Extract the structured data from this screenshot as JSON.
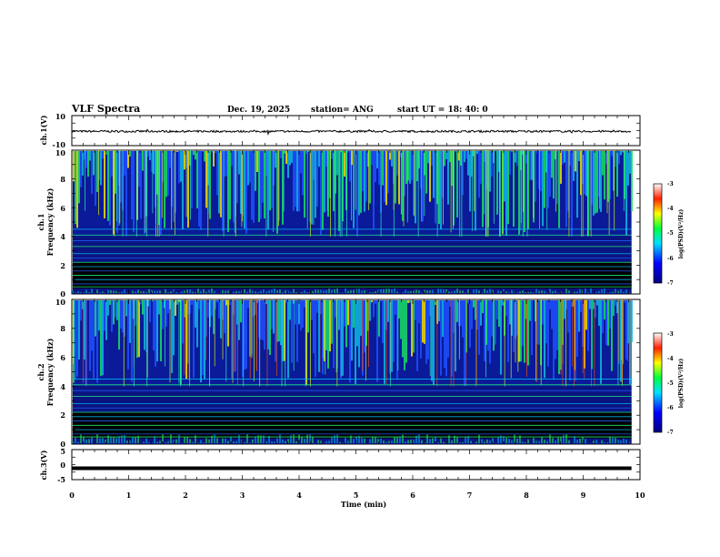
{
  "header": {
    "title": "VLF Spectra",
    "date": "Dec. 19, 2025",
    "station": "station= ANG",
    "start": "start  UT =   18: 40: 0"
  },
  "colors": {
    "spectro_bg": "#0a1a99",
    "floor": "#000000"
  },
  "chart_data": [
    {
      "type": "line",
      "name": "ch1-waveform",
      "ylabel": "ch.1(V)",
      "ylim": [
        -10,
        10
      ],
      "yticks": [
        "10",
        "-10"
      ],
      "baseline": -0.5
    },
    {
      "type": "heatmap",
      "name": "ch1-spectrogram",
      "ylabel": "ch.1",
      "ylabel2": "Frequency  (kHz)",
      "ylim": [
        0,
        10
      ],
      "yticks": [
        "0",
        "2",
        "4",
        "6",
        "8",
        "10"
      ],
      "colorbar": {
        "label": "log(PSD)(V²/Hz)",
        "range": [
          -7,
          -3
        ],
        "ticks": [
          "-3",
          "-4",
          "-5",
          "-6",
          "-7"
        ]
      }
    },
    {
      "type": "heatmap",
      "name": "ch2-spectrogram",
      "ylabel": "ch.2",
      "ylabel2": "Frequency  (kHz)",
      "ylim": [
        0,
        10
      ],
      "yticks": [
        "0",
        "2",
        "4",
        "6",
        "8",
        "10"
      ],
      "colorbar": {
        "label": "log(PSD)(V²/Hz)",
        "range": [
          -7,
          -3
        ],
        "ticks": [
          "-3",
          "-4",
          "-5",
          "-6",
          "-7"
        ]
      }
    },
    {
      "type": "line",
      "name": "ch3-waveform",
      "ylabel": "ch.3(V)",
      "ylim": [
        -5,
        5
      ],
      "yticks": [
        "5",
        "0",
        "-5"
      ],
      "baseline": -1.2
    }
  ],
  "xaxis": {
    "label": "Time  (min)",
    "range": [
      0,
      10
    ],
    "ticks": [
      "0",
      "1",
      "2",
      "3",
      "4",
      "5",
      "6",
      "7",
      "8",
      "9",
      "10"
    ],
    "data_end": 9.85
  }
}
